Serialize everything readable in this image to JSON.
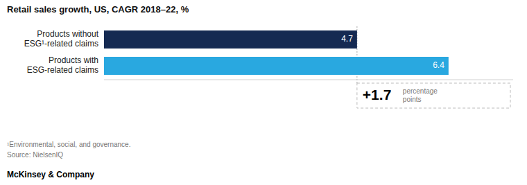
{
  "chart_data": {
    "type": "bar",
    "orientation": "horizontal",
    "title": "Retail sales growth, US, CAGR 2018–22, %",
    "categories": [
      "Products without\nESG¹-related claims",
      "Products with\nESG-related claims"
    ],
    "values": [
      4.7,
      6.4
    ],
    "colors": [
      "#152a52",
      "#29a8e0"
    ],
    "xlim": [
      0,
      7.6
    ],
    "data_labels": true,
    "tick_labels": "y",
    "grid": false,
    "annotations": [
      {
        "x": 4.7,
        "text": "+1.7",
        "detail": "percentage\npoints"
      }
    ],
    "footnotes": [
      "¹Environmental, social, and governance.",
      "Source: NielsenIQ"
    ],
    "brand": "McKinsey & Company"
  }
}
